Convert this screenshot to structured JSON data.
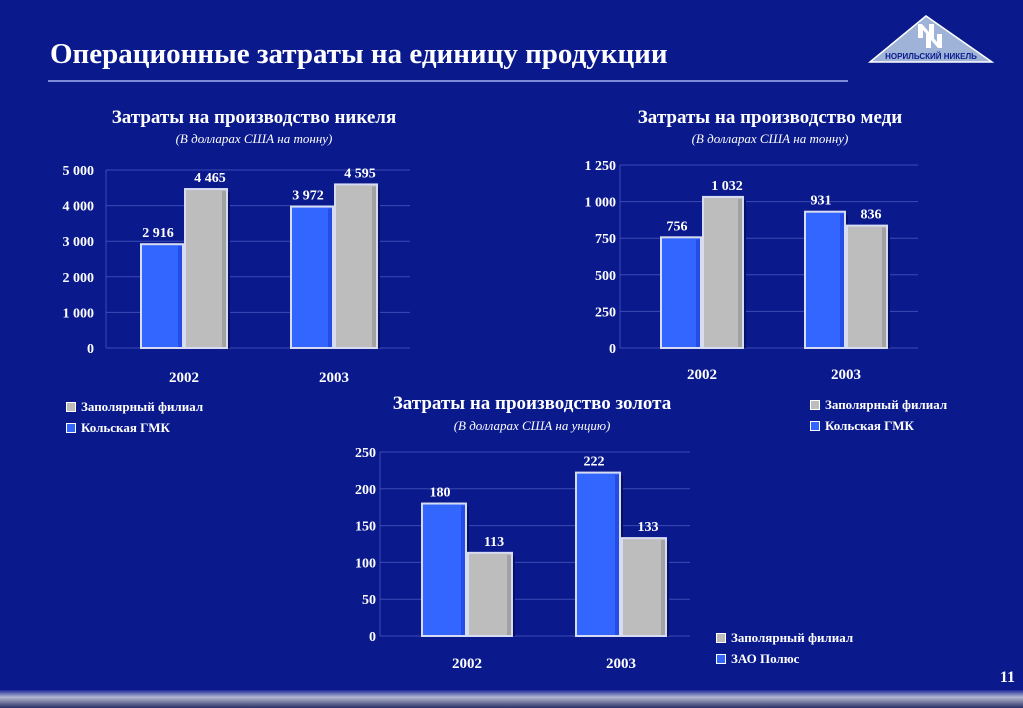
{
  "page": {
    "title": "Операционные затраты на единицу продукции",
    "logo_text": "НОРИЛЬСКИЙ НИКЕЛЬ",
    "page_number": "11"
  },
  "colors": {
    "background": "#0a1a8c",
    "series_blue": "#3366ff",
    "series_gray": "#bdbdbd",
    "gridline": "#3c4bb5"
  },
  "chart_data": [
    {
      "type": "bar",
      "title": "Затраты на производство никеля",
      "subtitle": "(В долларах США на тонну)",
      "categories": [
        "2002",
        "2003"
      ],
      "series": [
        {
          "name": "Кольская ГМК",
          "values": [
            2916,
            3972
          ],
          "labels": [
            "2 916",
            "3 972"
          ]
        },
        {
          "name": "Заполярный филиал",
          "values": [
            4465,
            4595
          ],
          "labels": [
            "4 465",
            "4 595"
          ]
        }
      ],
      "ylim": [
        0,
        5000
      ],
      "yticks": [
        0,
        1000,
        2000,
        3000,
        4000,
        5000
      ],
      "ytick_labels": [
        "0",
        "1 000",
        "2 000",
        "3 000",
        "4 000",
        "5 000"
      ],
      "legend": [
        "Заполярный филиал",
        "Кольская ГМК"
      ],
      "grid": true
    },
    {
      "type": "bar",
      "title": "Затраты на производство меди",
      "subtitle": "(В долларах США на тонну)",
      "categories": [
        "2002",
        "2003"
      ],
      "series": [
        {
          "name": "Кольская ГМК",
          "values": [
            756,
            931
          ],
          "labels": [
            "756",
            "931"
          ]
        },
        {
          "name": "Заполярный филиал",
          "values": [
            1032,
            836
          ],
          "labels": [
            "1 032",
            "836"
          ]
        }
      ],
      "ylim": [
        0,
        1250
      ],
      "yticks": [
        0,
        250,
        500,
        750,
        1000,
        1250
      ],
      "ytick_labels": [
        "0",
        "250",
        "500",
        "750",
        "1 000",
        "1 250"
      ],
      "legend": [
        "Заполярный филиал",
        "Кольская ГМК"
      ],
      "grid": true
    },
    {
      "type": "bar",
      "title": "Затраты на производство золота",
      "subtitle": "(В долларах США на унцию)",
      "categories": [
        "2002",
        "2003"
      ],
      "series": [
        {
          "name": "ЗАО Полюс",
          "values": [
            180,
            222
          ],
          "labels": [
            "180",
            "222"
          ]
        },
        {
          "name": "Заполярный филиал",
          "values": [
            113,
            133
          ],
          "labels": [
            "113",
            "133"
          ]
        }
      ],
      "ylim": [
        0,
        250
      ],
      "yticks": [
        0,
        50,
        100,
        150,
        200,
        250
      ],
      "ytick_labels": [
        "0",
        "50",
        "100",
        "150",
        "200",
        "250"
      ],
      "legend": [
        "Заполярный филиал",
        "ЗАО Полюс"
      ],
      "grid": true
    }
  ]
}
